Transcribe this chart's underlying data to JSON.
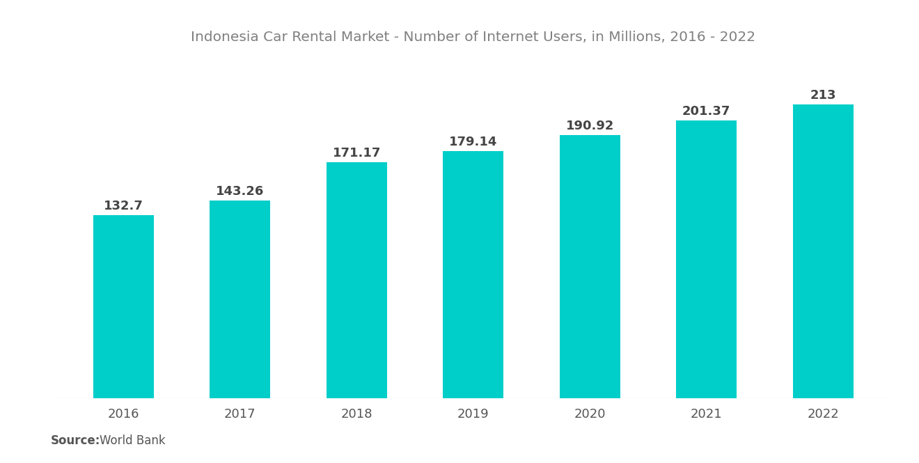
{
  "title": "Indonesia Car Rental Market - Number of Internet Users, in Millions, 2016 - 2022",
  "years": [
    "2016",
    "2017",
    "2018",
    "2019",
    "2020",
    "2021",
    "2022"
  ],
  "values": [
    132.7,
    143.26,
    171.17,
    179.14,
    190.92,
    201.37,
    213
  ],
  "bar_color": "#00CEC9",
  "label_color": "#444444",
  "title_color": "#808080",
  "background_color": "#ffffff",
  "source_bold": "Source:",
  "source_text": "World Bank",
  "bar_width": 0.52,
  "ylim": [
    0,
    245
  ],
  "title_fontsize": 14.5,
  "label_fontsize": 13,
  "tick_fontsize": 13,
  "source_fontsize": 12
}
